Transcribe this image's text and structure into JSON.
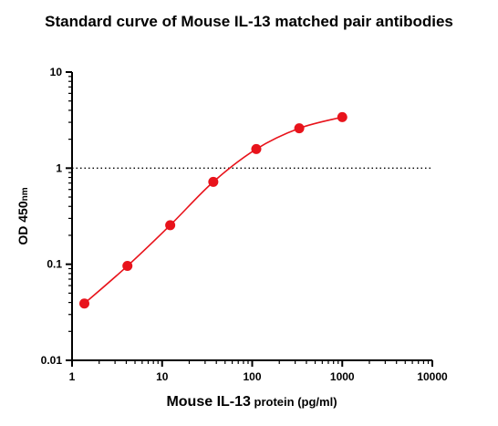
{
  "chart_data": {
    "type": "scatter",
    "title": "Standard curve of Mouse IL-13 matched pair antibodies",
    "xlabel_main": "Mouse IL-13",
    "xlabel_suffix": " protein (pg/ml)",
    "ylabel_main": "OD 450",
    "ylabel_suffix": "nm",
    "x_scale": "log",
    "y_scale": "log",
    "xlim": [
      1,
      10000
    ],
    "ylim": [
      0.01,
      10
    ],
    "x_ticks": [
      {
        "value": 1,
        "label": "1"
      },
      {
        "value": 10,
        "label": "10"
      },
      {
        "value": 100,
        "label": "100"
      },
      {
        "value": 1000,
        "label": "1000"
      },
      {
        "value": 10000,
        "label": "10000"
      }
    ],
    "y_ticks": [
      {
        "value": 0.01,
        "label": "0.01"
      },
      {
        "value": 0.1,
        "label": "0.1"
      },
      {
        "value": 1,
        "label": "1"
      },
      {
        "value": 10,
        "label": "10"
      }
    ],
    "reference_line_y": 1,
    "series": [
      {
        "x": [
          1.37,
          4.12,
          12.3,
          37.0,
          111,
          333,
          1000
        ],
        "y": [
          0.039,
          0.096,
          0.255,
          0.72,
          1.58,
          2.6,
          3.4
        ],
        "color": "#e8131b"
      }
    ],
    "grid": false,
    "legend": "none"
  }
}
